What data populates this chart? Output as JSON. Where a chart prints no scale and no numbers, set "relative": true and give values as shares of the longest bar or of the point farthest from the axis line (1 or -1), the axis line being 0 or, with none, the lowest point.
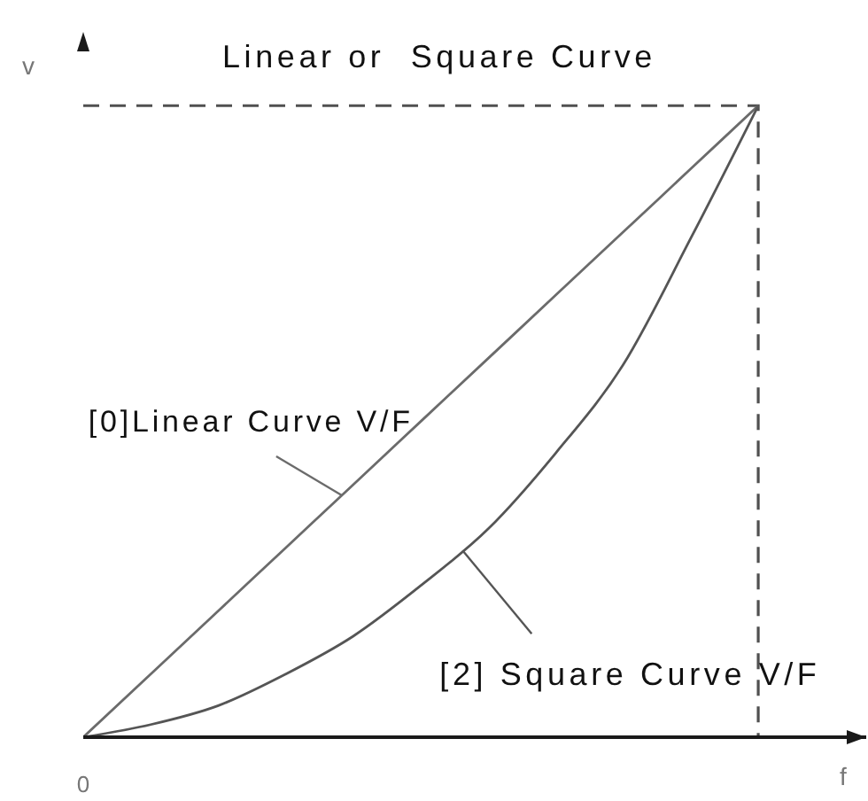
{
  "chart_data": {
    "type": "line",
    "title": "Linear or  Square Curve",
    "xlabel": "f",
    "ylabel": "v",
    "relative": true,
    "categories": [
      null,
      null,
      null,
      null,
      null,
      null,
      null,
      null,
      null,
      null,
      null
    ],
    "series": [
      {
        "name": "[0]Linear Curve V/F",
        "color": "#6b6b6b",
        "values": [
          0,
          0.1,
          0.2,
          0.3,
          0.4,
          0.5,
          0.6,
          0.7,
          0.8,
          0.9,
          1
        ]
      },
      {
        "name": "[2] Square Curve V/F",
        "color": "#555555",
        "values": [
          0,
          0.02,
          0.05,
          0.1,
          0.16,
          0.24,
          0.33,
          0.45,
          0.59,
          0.79,
          1
        ]
      }
    ],
    "marker": "none",
    "annotations": [
      "0"
    ],
    "ref_lines": [
      {
        "axis": "y",
        "value": 1,
        "color": "#505050",
        "line_style": "dashed"
      }
    ]
  }
}
